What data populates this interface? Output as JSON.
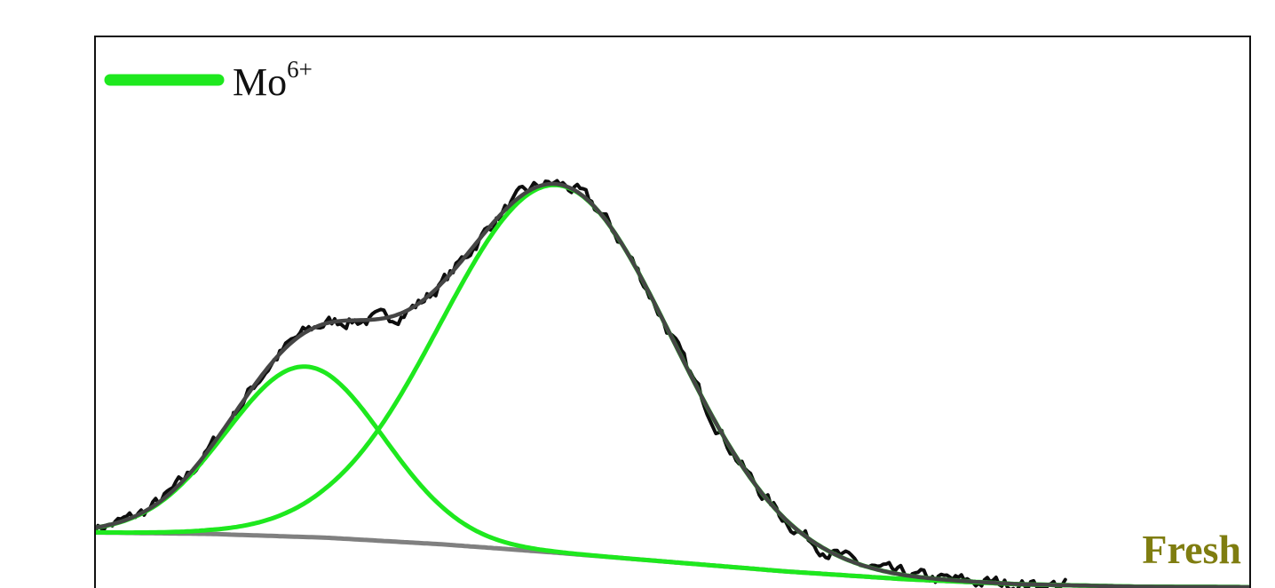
{
  "chart_data": {
    "type": "line",
    "title": "",
    "xlabel": "",
    "ylabel": "",
    "xlim": [
      0,
      100
    ],
    "ylim": [
      0,
      100
    ],
    "grid": false,
    "axis_ticks": "none",
    "legend": {
      "placement": "top-left",
      "entries": [
        {
          "text": "Mo",
          "superscript": "6+",
          "color": "#1ee81e"
        }
      ]
    },
    "annotation": {
      "text": "Fresh",
      "placement": "bottom-right",
      "color": "#7f7d10"
    },
    "series_meta": {
      "raw": {
        "color": "#0d0d0d"
      },
      "envelope": {
        "color": "#454545"
      },
      "peak1": {
        "color": "#1ee81e"
      },
      "peak2": {
        "color": "#1ee81e"
      },
      "baseline": {
        "color": "#808080"
      }
    },
    "baseline": {
      "x": [
        0,
        10,
        20,
        30,
        40,
        50,
        60,
        70,
        80,
        90,
        100
      ],
      "y": [
        11.6,
        11.3,
        10.5,
        9.1,
        7.3,
        5.3,
        3.3,
        1.7,
        0.6,
        0.1,
        0
      ]
    },
    "peak1": {
      "shape": "gaussian",
      "center": 18.2,
      "height": 36.2,
      "sigma": 6.8
    },
    "peak2": {
      "shape": "gaussian",
      "center": 40.0,
      "height": 78.1,
      "sigma": 10.0
    },
    "raw_noise_amplitude": 1.2,
    "raw_x_range": [
      0,
      84
    ]
  }
}
